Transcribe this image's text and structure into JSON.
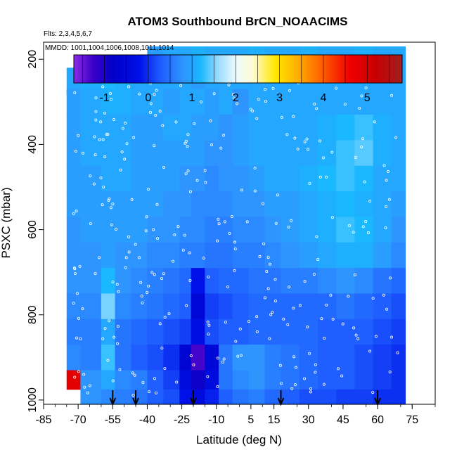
{
  "chart_data": {
    "type": "heatmap",
    "title": "ATOM3 Southbound BrCN_NOAACIMS",
    "flights_label": "Flts: 2,3,4,5,6,7",
    "dates_label": "MMDD: 1001,1004,1006,1008,1011,1014",
    "xlabel": "Latitude (deg N)",
    "ylabel": "PSXC (mbar)",
    "xlim": [
      -85,
      85
    ],
    "ylim": [
      1010,
      160
    ],
    "x_ticks": [
      -85,
      -70,
      -55,
      -40,
      -25,
      -10,
      5,
      15,
      30,
      45,
      60,
      75
    ],
    "x_tick_labels": [
      "-85",
      "-70",
      "-55",
      "-40",
      "-25",
      "-10",
      "5",
      "15",
      "30",
      "45",
      "60",
      "75"
    ],
    "y_ticks": [
      200,
      400,
      600,
      800,
      1000
    ],
    "y_tick_labels": [
      "200",
      "400",
      "600",
      "800",
      "1000"
    ],
    "colorbar": {
      "range": [
        -1.7,
        5.8
      ],
      "ticks": [
        -1,
        0,
        1,
        2,
        3,
        4,
        5
      ],
      "tick_labels": [
        "-1",
        "0",
        "1",
        "2",
        "3",
        "4",
        "5"
      ],
      "stops": [
        {
          "v": -1.7,
          "c": "#8a2be2"
        },
        {
          "v": -1.25,
          "c": "#3a00c8"
        },
        {
          "v": -0.8,
          "c": "#0000c8"
        },
        {
          "v": -0.2,
          "c": "#0010e8"
        },
        {
          "v": 0.3,
          "c": "#1f5fff"
        },
        {
          "v": 0.8,
          "c": "#2e95ff"
        },
        {
          "v": 1.2,
          "c": "#19b8ff"
        },
        {
          "v": 1.6,
          "c": "#9adcff"
        },
        {
          "v": 2.0,
          "c": "#eefaff"
        },
        {
          "v": 2.4,
          "c": "#fff9d0"
        },
        {
          "v": 2.9,
          "c": "#ffe800"
        },
        {
          "v": 3.4,
          "c": "#ffb000"
        },
        {
          "v": 4.0,
          "c": "#ff5a00"
        },
        {
          "v": 4.6,
          "c": "#f00000"
        },
        {
          "v": 5.2,
          "c": "#c80000"
        },
        {
          "v": 5.8,
          "c": "#a02020"
        }
      ]
    },
    "pressure_levels": [
      {
        "p_top": 170,
        "p_bottom": 230,
        "values": [
          null,
          null,
          null,
          null,
          null,
          0.9,
          1.0,
          1.0,
          1.1,
          1.0,
          1.0,
          1.0,
          1.1,
          1.0,
          1.0,
          1.1,
          1.0,
          1.0,
          1.1,
          1.0,
          1.0
        ]
      },
      {
        "p_top": 220,
        "p_bottom": 280,
        "values": [
          1.0,
          1.1,
          1.2,
          1.1,
          1.0,
          1.0,
          1.0,
          1.0,
          0.9,
          1.0,
          1.0,
          1.0,
          1.0,
          1.0,
          1.0,
          1.0,
          1.0,
          1.0,
          1.0,
          1.0,
          1.0
        ]
      },
      {
        "p_top": 270,
        "p_bottom": 330,
        "values": [
          0.9,
          1.0,
          1.1,
          1.1,
          1.0,
          1.0,
          0.9,
          1.0,
          1.0,
          0.9,
          1.0,
          0.8,
          1.0,
          1.0,
          1.0,
          1.0,
          1.0,
          1.0,
          1.0,
          1.0,
          1.0
        ]
      },
      {
        "p_top": 330,
        "p_bottom": 390,
        "values": [
          0.9,
          1.0,
          1.0,
          1.0,
          0.9,
          0.9,
          1.0,
          1.0,
          0.9,
          0.9,
          0.8,
          0.9,
          1.0,
          1.0,
          1.0,
          1.0,
          1.1,
          1.2,
          1.3,
          1.1,
          1.0
        ]
      },
      {
        "p_top": 390,
        "p_bottom": 450,
        "values": [
          0.9,
          1.0,
          1.0,
          1.0,
          0.9,
          0.9,
          0.9,
          0.9,
          0.9,
          0.8,
          0.8,
          0.9,
          1.0,
          1.0,
          1.0,
          1.0,
          1.1,
          1.3,
          1.4,
          1.1,
          1.0
        ]
      },
      {
        "p_top": 450,
        "p_bottom": 510,
        "values": [
          0.9,
          0.9,
          1.0,
          1.0,
          0.9,
          0.9,
          0.9,
          0.8,
          0.8,
          0.7,
          0.8,
          0.8,
          0.9,
          1.0,
          1.0,
          1.1,
          1.2,
          1.3,
          1.2,
          1.0,
          1.0
        ]
      },
      {
        "p_top": 510,
        "p_bottom": 570,
        "values": [
          0.9,
          0.9,
          0.9,
          0.9,
          0.9,
          0.9,
          0.8,
          0.8,
          0.7,
          0.7,
          0.7,
          0.8,
          0.8,
          0.9,
          0.9,
          1.0,
          1.1,
          1.2,
          1.1,
          1.0,
          0.9
        ]
      },
      {
        "p_top": 570,
        "p_bottom": 630,
        "values": [
          0.8,
          0.9,
          0.9,
          0.9,
          0.9,
          0.8,
          0.8,
          0.7,
          0.7,
          0.6,
          0.6,
          0.7,
          0.7,
          0.8,
          0.9,
          1.0,
          1.1,
          1.3,
          1.2,
          1.0,
          0.8
        ]
      },
      {
        "p_top": 630,
        "p_bottom": 690,
        "values": [
          0.8,
          0.8,
          0.9,
          0.8,
          0.8,
          0.7,
          0.7,
          0.6,
          0.6,
          0.5,
          0.5,
          0.6,
          0.6,
          0.7,
          0.8,
          0.9,
          1.0,
          1.1,
          1.1,
          0.9,
          0.7
        ]
      },
      {
        "p_top": 690,
        "p_bottom": 750,
        "values": [
          0.8,
          0.8,
          1.2,
          0.8,
          0.7,
          0.6,
          0.5,
          0.4,
          -0.2,
          0.3,
          0.4,
          0.4,
          0.5,
          0.5,
          0.6,
          0.6,
          0.7,
          0.8,
          0.7,
          0.5,
          0.4
        ]
      },
      {
        "p_top": 750,
        "p_bottom": 810,
        "values": [
          0.7,
          0.7,
          1.5,
          0.7,
          0.6,
          0.5,
          0.4,
          0.3,
          -0.5,
          0.1,
          0.2,
          0.3,
          0.4,
          0.4,
          0.4,
          0.4,
          0.4,
          0.5,
          0.4,
          0.3,
          0.2
        ]
      },
      {
        "p_top": 810,
        "p_bottom": 870,
        "values": [
          0.6,
          0.6,
          1.0,
          0.5,
          0.4,
          0.3,
          0.2,
          0.1,
          -0.3,
          0.2,
          0.3,
          0.3,
          0.4,
          0.4,
          0.4,
          0.4,
          0.3,
          0.3,
          0.3,
          0.2,
          0.1
        ]
      },
      {
        "p_top": 870,
        "p_bottom": 930,
        "values": [
          0.7,
          0.6,
          1.3,
          0.5,
          0.3,
          0.2,
          0.0,
          -0.6,
          -1.3,
          -0.5,
          0.5,
          0.8,
          0.8,
          0.6,
          0.5,
          0.4,
          0.3,
          0.3,
          0.2,
          0.1,
          0.0
        ]
      },
      {
        "p_top": 930,
        "p_bottom": 975,
        "values": [
          4.8,
          0.8,
          1.0,
          0.7,
          0.6,
          0.3,
          0.1,
          -0.4,
          -0.9,
          -0.4,
          0.5,
          0.7,
          0.8,
          0.6,
          0.5,
          0.4,
          0.3,
          0.3,
          0.2,
          0.1,
          0.0
        ]
      },
      {
        "p_top": 975,
        "p_bottom": 1010,
        "values": [
          null,
          0.8,
          0.7,
          0.6,
          0.5,
          0.3,
          0.2,
          -0.2,
          -0.4,
          -0.1,
          0.3,
          0.5,
          0.6,
          0.4,
          0.3,
          0.2,
          0.2,
          0.1,
          0.1,
          0.0,
          0.0
        ]
      }
    ],
    "lat_bins": [
      -75,
      -69,
      -60,
      -54,
      -47,
      -40,
      -33,
      -26,
      -21,
      -15,
      -9,
      -3,
      4,
      11,
      18,
      26,
      34,
      42,
      50,
      58,
      66,
      72
    ],
    "profile_latitudes": [
      -55,
      -45,
      -20,
      18,
      60
    ]
  }
}
